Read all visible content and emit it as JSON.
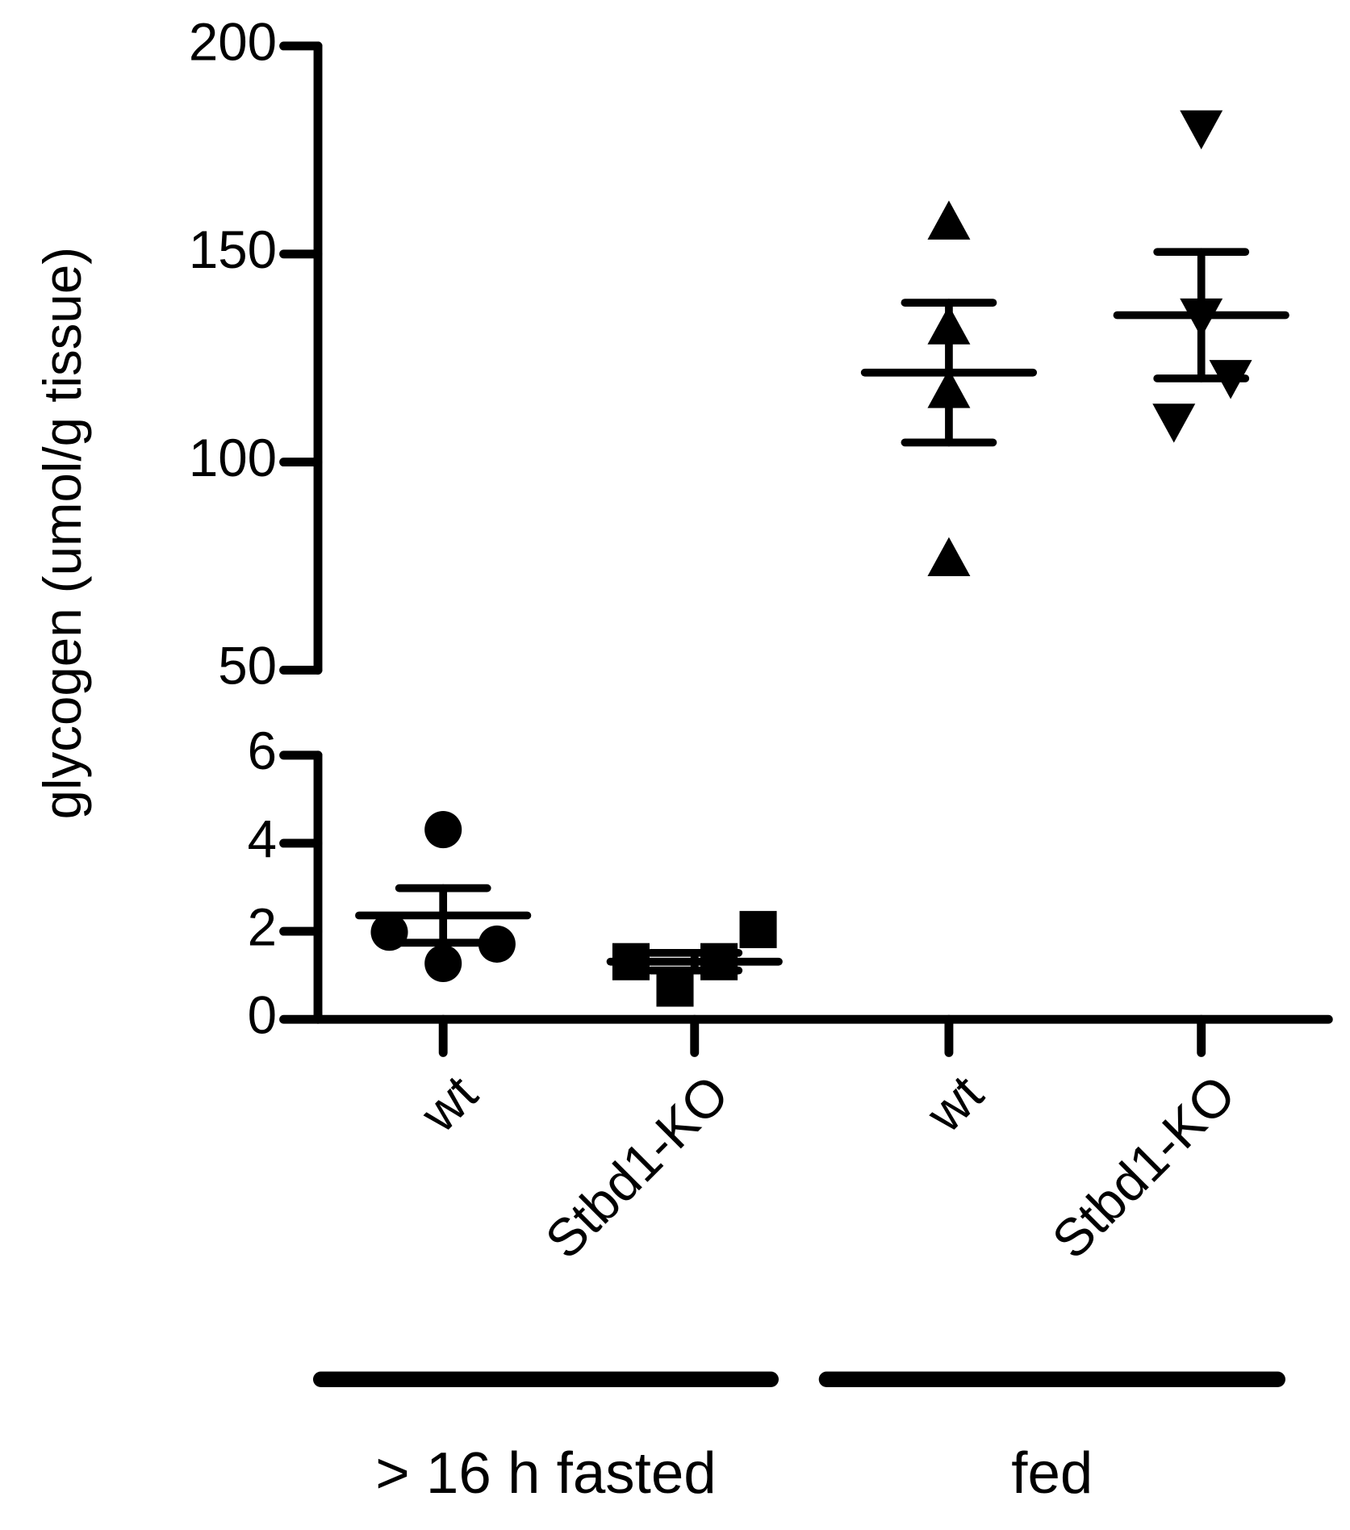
{
  "chart_data": {
    "type": "dot",
    "y_label": "glycogen (umol/g tissue)",
    "categories": [
      "wt",
      "Stbd1-KO",
      "wt",
      "Stbd1-KO"
    ],
    "groups": [
      {
        "marker": "circle",
        "values": [
          4.31,
          1.98,
          1.27,
          1.71
        ],
        "mean": 2.36,
        "sem": 0.62
      },
      {
        "marker": "square",
        "values": [
          1.31,
          0.71,
          1.31,
          2.04
        ],
        "mean": 1.31,
        "sem": 0.2
      },
      {
        "marker": "triangle",
        "values": [
          157.5,
          132.3,
          117,
          76.6
        ],
        "mean": 121.5,
        "sem": 16.8
      },
      {
        "marker": "triangle-down",
        "values": [
          180.5,
          135.3,
          120.5,
          110
        ],
        "mean": 135.3,
        "sem": 15.2
      }
    ],
    "group_labels": [
      {
        "label": "> 16 h fasted",
        "span": [
          0,
          1
        ]
      },
      {
        "label": "fed",
        "span": [
          2,
          3
        ]
      }
    ],
    "yaxes": [
      {
        "ylim": [
          0,
          6
        ],
        "yticks": [
          0,
          2,
          4,
          6
        ]
      },
      {
        "ylim": [
          50,
          200
        ],
        "yticks": [
          50,
          100,
          150,
          200
        ]
      }
    ],
    "color": "#000000"
  }
}
